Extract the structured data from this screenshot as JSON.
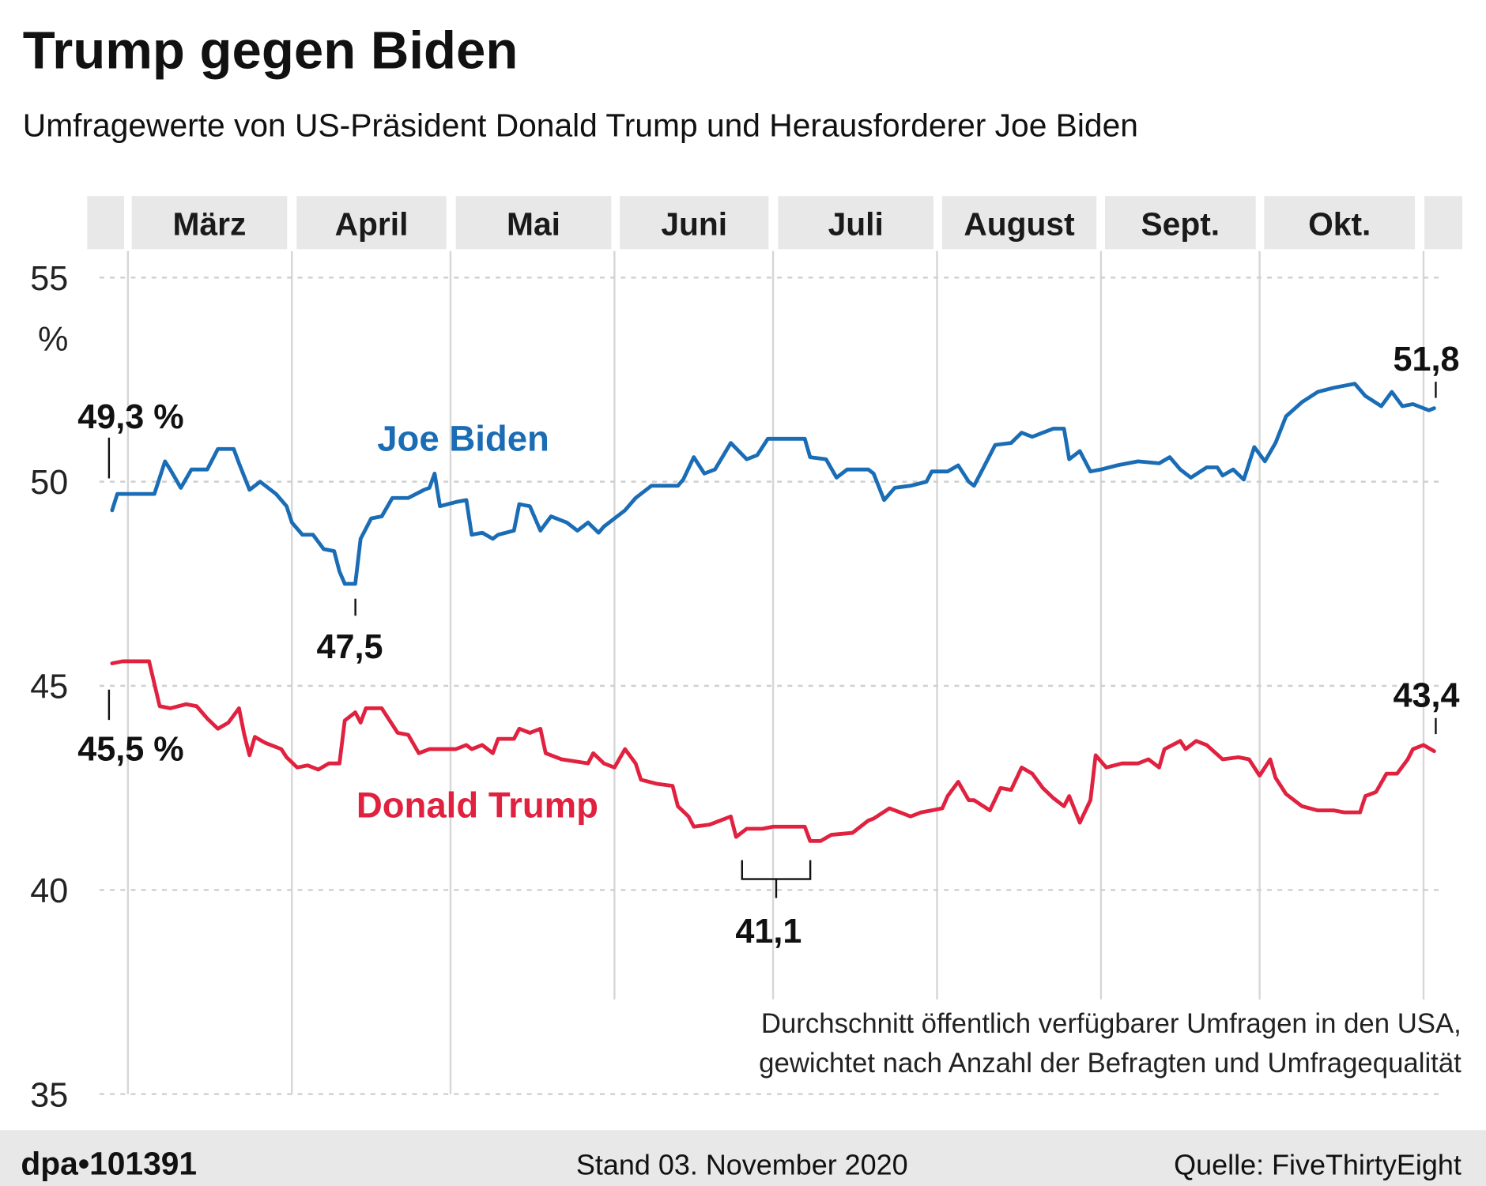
{
  "chart_data": {
    "type": "line",
    "title": "Trump gegen Biden",
    "subtitle": "Umfragewerte von US-Präsident Donald Trump und Herausforderer Joe Biden",
    "ylabel": "%",
    "ylim": [
      35,
      55
    ],
    "yticks": [
      "55",
      "50",
      "45",
      "40",
      "35"
    ],
    "xlim": [
      "2020-02-27",
      "2020-11-03"
    ],
    "months": [
      "März",
      "April",
      "Mai",
      "Juni",
      "Juli",
      "August",
      "Sept.",
      "Okt."
    ],
    "grid": true,
    "colors": {
      "biden": "#1a6db5",
      "trump": "#e0213f",
      "header": "#e8e8e8",
      "footer": "#e8e8e8"
    },
    "series": [
      {
        "name": "Joe Biden",
        "key": "biden",
        "points": [
          [
            "2020-02-27",
            49.3
          ],
          [
            "2020-02-28",
            49.7
          ],
          [
            "2020-03-06",
            49.7
          ],
          [
            "2020-03-08",
            50.5
          ],
          [
            "2020-03-09",
            50.3
          ],
          [
            "2020-03-11",
            49.85
          ],
          [
            "2020-03-13",
            50.3
          ],
          [
            "2020-03-16",
            50.3
          ],
          [
            "2020-03-18",
            50.8
          ],
          [
            "2020-03-21",
            50.8
          ],
          [
            "2020-03-22",
            50.45
          ],
          [
            "2020-03-24",
            49.8
          ],
          [
            "2020-03-26",
            50.0
          ],
          [
            "2020-03-29",
            49.7
          ],
          [
            "2020-03-31",
            49.4
          ],
          [
            "2020-04-01",
            49.0
          ],
          [
            "2020-04-03",
            48.7
          ],
          [
            "2020-04-05",
            48.7
          ],
          [
            "2020-04-07",
            48.35
          ],
          [
            "2020-04-09",
            48.3
          ],
          [
            "2020-04-10",
            47.8
          ],
          [
            "2020-04-11",
            47.5
          ],
          [
            "2020-04-13",
            47.5
          ],
          [
            "2020-04-14",
            48.6
          ],
          [
            "2020-04-16",
            49.1
          ],
          [
            "2020-04-18",
            49.15
          ],
          [
            "2020-04-20",
            49.6
          ],
          [
            "2020-04-23",
            49.6
          ],
          [
            "2020-04-26",
            49.8
          ],
          [
            "2020-04-27",
            49.85
          ],
          [
            "2020-04-28",
            50.2
          ],
          [
            "2020-04-29",
            49.4
          ],
          [
            "2020-05-02",
            49.5
          ],
          [
            "2020-05-04",
            49.55
          ],
          [
            "2020-05-05",
            48.7
          ],
          [
            "2020-05-07",
            48.75
          ],
          [
            "2020-05-09",
            48.6
          ],
          [
            "2020-05-10",
            48.7
          ],
          [
            "2020-05-13",
            48.8
          ],
          [
            "2020-05-14",
            49.45
          ],
          [
            "2020-05-16",
            49.4
          ],
          [
            "2020-05-18",
            48.8
          ],
          [
            "2020-05-20",
            49.15
          ],
          [
            "2020-05-23",
            49.0
          ],
          [
            "2020-05-25",
            48.8
          ],
          [
            "2020-05-27",
            49.0
          ],
          [
            "2020-05-29",
            48.75
          ],
          [
            "2020-05-30",
            48.9
          ],
          [
            "2020-06-01",
            49.1
          ],
          [
            "2020-06-03",
            49.3
          ],
          [
            "2020-06-05",
            49.6
          ],
          [
            "2020-06-08",
            49.9
          ],
          [
            "2020-06-13",
            49.9
          ],
          [
            "2020-06-14",
            50.05
          ],
          [
            "2020-06-16",
            50.6
          ],
          [
            "2020-06-18",
            50.2
          ],
          [
            "2020-06-20",
            50.3
          ],
          [
            "2020-06-23",
            50.95
          ],
          [
            "2020-06-26",
            50.55
          ],
          [
            "2020-06-28",
            50.65
          ],
          [
            "2020-06-30",
            51.05
          ],
          [
            "2020-07-07",
            51.05
          ],
          [
            "2020-07-08",
            50.6
          ],
          [
            "2020-07-11",
            50.55
          ],
          [
            "2020-07-13",
            50.1
          ],
          [
            "2020-07-15",
            50.3
          ],
          [
            "2020-07-19",
            50.3
          ],
          [
            "2020-07-20",
            50.2
          ],
          [
            "2020-07-22",
            49.55
          ],
          [
            "2020-07-24",
            49.85
          ],
          [
            "2020-07-27",
            49.9
          ],
          [
            "2020-07-30",
            50.0
          ],
          [
            "2020-07-31",
            50.25
          ],
          [
            "2020-08-03",
            50.25
          ],
          [
            "2020-08-05",
            50.4
          ],
          [
            "2020-08-07",
            50.0
          ],
          [
            "2020-08-08",
            49.9
          ],
          [
            "2020-08-10",
            50.4
          ],
          [
            "2020-08-12",
            50.9
          ],
          [
            "2020-08-15",
            50.95
          ],
          [
            "2020-08-17",
            51.2
          ],
          [
            "2020-08-19",
            51.1
          ],
          [
            "2020-08-21",
            51.2
          ],
          [
            "2020-08-23",
            51.3
          ],
          [
            "2020-08-25",
            51.3
          ],
          [
            "2020-08-26",
            50.55
          ],
          [
            "2020-08-28",
            50.75
          ],
          [
            "2020-08-30",
            50.25
          ],
          [
            "2020-09-01",
            50.3
          ],
          [
            "2020-09-04",
            50.4
          ],
          [
            "2020-09-08",
            50.5
          ],
          [
            "2020-09-12",
            50.45
          ],
          [
            "2020-09-14",
            50.6
          ],
          [
            "2020-09-16",
            50.3
          ],
          [
            "2020-09-18",
            50.1
          ],
          [
            "2020-09-21",
            50.35
          ],
          [
            "2020-09-23",
            50.35
          ],
          [
            "2020-09-24",
            50.15
          ],
          [
            "2020-09-26",
            50.3
          ],
          [
            "2020-09-28",
            50.05
          ],
          [
            "2020-09-30",
            50.85
          ],
          [
            "2020-10-02",
            50.5
          ],
          [
            "2020-10-04",
            50.95
          ],
          [
            "2020-10-06",
            51.6
          ],
          [
            "2020-10-09",
            51.95
          ],
          [
            "2020-10-12",
            52.2
          ],
          [
            "2020-10-15",
            52.3
          ],
          [
            "2020-10-17",
            52.35
          ],
          [
            "2020-10-19",
            52.4
          ],
          [
            "2020-10-21",
            52.1
          ],
          [
            "2020-10-24",
            51.85
          ],
          [
            "2020-10-26",
            52.2
          ],
          [
            "2020-10-28",
            51.85
          ],
          [
            "2020-10-30",
            51.9
          ],
          [
            "2020-10-31",
            51.85
          ],
          [
            "2020-11-02",
            51.75
          ],
          [
            "2020-11-03",
            51.8
          ]
        ]
      },
      {
        "name": "Donald Trump",
        "key": "trump",
        "points": [
          [
            "2020-02-27",
            45.55
          ],
          [
            "2020-02-29",
            45.6
          ],
          [
            "2020-03-05",
            45.6
          ],
          [
            "2020-03-07",
            44.5
          ],
          [
            "2020-03-09",
            44.45
          ],
          [
            "2020-03-12",
            44.55
          ],
          [
            "2020-03-14",
            44.5
          ],
          [
            "2020-03-16",
            44.2
          ],
          [
            "2020-03-18",
            43.95
          ],
          [
            "2020-03-20",
            44.1
          ],
          [
            "2020-03-22",
            44.45
          ],
          [
            "2020-03-23",
            43.8
          ],
          [
            "2020-03-24",
            43.3
          ],
          [
            "2020-03-25",
            43.75
          ],
          [
            "2020-03-27",
            43.6
          ],
          [
            "2020-03-30",
            43.45
          ],
          [
            "2020-03-31",
            43.25
          ],
          [
            "2020-04-02",
            43.0
          ],
          [
            "2020-04-04",
            43.05
          ],
          [
            "2020-04-06",
            42.95
          ],
          [
            "2020-04-08",
            43.1
          ],
          [
            "2020-04-10",
            43.1
          ],
          [
            "2020-04-11",
            44.15
          ],
          [
            "2020-04-13",
            44.35
          ],
          [
            "2020-04-14",
            44.1
          ],
          [
            "2020-04-15",
            44.45
          ],
          [
            "2020-04-18",
            44.45
          ],
          [
            "2020-04-21",
            43.85
          ],
          [
            "2020-04-23",
            43.8
          ],
          [
            "2020-04-25",
            43.35
          ],
          [
            "2020-04-27",
            43.45
          ],
          [
            "2020-05-02",
            43.45
          ],
          [
            "2020-05-04",
            43.55
          ],
          [
            "2020-05-05",
            43.45
          ],
          [
            "2020-05-07",
            43.55
          ],
          [
            "2020-05-09",
            43.35
          ],
          [
            "2020-05-10",
            43.7
          ],
          [
            "2020-05-13",
            43.7
          ],
          [
            "2020-05-14",
            43.95
          ],
          [
            "2020-05-16",
            43.85
          ],
          [
            "2020-05-18",
            43.95
          ],
          [
            "2020-05-19",
            43.35
          ],
          [
            "2020-05-22",
            43.2
          ],
          [
            "2020-05-27",
            43.1
          ],
          [
            "2020-05-28",
            43.35
          ],
          [
            "2020-05-30",
            43.1
          ],
          [
            "2020-06-01",
            43.0
          ],
          [
            "2020-06-03",
            43.45
          ],
          [
            "2020-06-05",
            43.1
          ],
          [
            "2020-06-06",
            42.7
          ],
          [
            "2020-06-09",
            42.6
          ],
          [
            "2020-06-12",
            42.55
          ],
          [
            "2020-06-13",
            42.05
          ],
          [
            "2020-06-15",
            41.8
          ],
          [
            "2020-06-16",
            41.55
          ],
          [
            "2020-06-19",
            41.6
          ],
          [
            "2020-06-21",
            41.7
          ],
          [
            "2020-06-23",
            41.8
          ],
          [
            "2020-06-24",
            41.3
          ],
          [
            "2020-06-26",
            41.5
          ],
          [
            "2020-06-29",
            41.5
          ],
          [
            "2020-07-01",
            41.55
          ],
          [
            "2020-07-07",
            41.55
          ],
          [
            "2020-07-08",
            41.2
          ],
          [
            "2020-07-10",
            41.2
          ],
          [
            "2020-07-12",
            41.35
          ],
          [
            "2020-07-16",
            41.4
          ],
          [
            "2020-07-19",
            41.7
          ],
          [
            "2020-07-20",
            41.75
          ],
          [
            "2020-07-23",
            42.0
          ],
          [
            "2020-07-25",
            41.9
          ],
          [
            "2020-07-27",
            41.8
          ],
          [
            "2020-07-29",
            41.9
          ],
          [
            "2020-07-31",
            41.95
          ],
          [
            "2020-08-02",
            42.0
          ],
          [
            "2020-08-03",
            42.3
          ],
          [
            "2020-08-05",
            42.65
          ],
          [
            "2020-08-07",
            42.2
          ],
          [
            "2020-08-08",
            42.2
          ],
          [
            "2020-08-11",
            41.95
          ],
          [
            "2020-08-13",
            42.5
          ],
          [
            "2020-08-15",
            42.45
          ],
          [
            "2020-08-17",
            43.0
          ],
          [
            "2020-08-19",
            42.85
          ],
          [
            "2020-08-21",
            42.5
          ],
          [
            "2020-08-23",
            42.25
          ],
          [
            "2020-08-25",
            42.05
          ],
          [
            "2020-08-26",
            42.3
          ],
          [
            "2020-08-28",
            41.65
          ],
          [
            "2020-08-30",
            42.2
          ],
          [
            "2020-08-31",
            43.3
          ],
          [
            "2020-09-02",
            43.0
          ],
          [
            "2020-09-05",
            43.1
          ],
          [
            "2020-09-08",
            43.1
          ],
          [
            "2020-09-10",
            43.2
          ],
          [
            "2020-09-12",
            43.0
          ],
          [
            "2020-09-13",
            43.45
          ],
          [
            "2020-09-16",
            43.65
          ],
          [
            "2020-09-17",
            43.45
          ],
          [
            "2020-09-19",
            43.65
          ],
          [
            "2020-09-21",
            43.55
          ],
          [
            "2020-09-24",
            43.2
          ],
          [
            "2020-09-27",
            43.25
          ],
          [
            "2020-09-29",
            43.2
          ],
          [
            "2020-10-01",
            42.8
          ],
          [
            "2020-10-03",
            43.2
          ],
          [
            "2020-10-04",
            42.75
          ],
          [
            "2020-10-06",
            42.35
          ],
          [
            "2020-10-09",
            42.05
          ],
          [
            "2020-10-12",
            41.95
          ],
          [
            "2020-10-15",
            41.95
          ],
          [
            "2020-10-17",
            41.9
          ],
          [
            "2020-10-20",
            41.9
          ],
          [
            "2020-10-21",
            42.3
          ],
          [
            "2020-10-23",
            42.4
          ],
          [
            "2020-10-25",
            42.85
          ],
          [
            "2020-10-27",
            42.85
          ],
          [
            "2020-10-29",
            43.2
          ],
          [
            "2020-10-30",
            43.45
          ],
          [
            "2020-11-01",
            43.55
          ],
          [
            "2020-11-03",
            43.4
          ]
        ]
      }
    ],
    "annotations": {
      "biden_start": "49,3 %",
      "biden_min": "47,5",
      "biden_end": "51,8",
      "trump_start": "45,5 %",
      "trump_min": "41,1",
      "trump_end": "43,4"
    },
    "note_line1": "Durchschnitt öffentlich verfügbarer Umfragen in den USA,",
    "note_line2": "gewichtet nach Anzahl der Befragten und Umfragequalität"
  },
  "footer": {
    "brand": "dpa•101391",
    "date": "Stand 03. November 2020",
    "source": "Quelle: FiveThirtyEight"
  }
}
